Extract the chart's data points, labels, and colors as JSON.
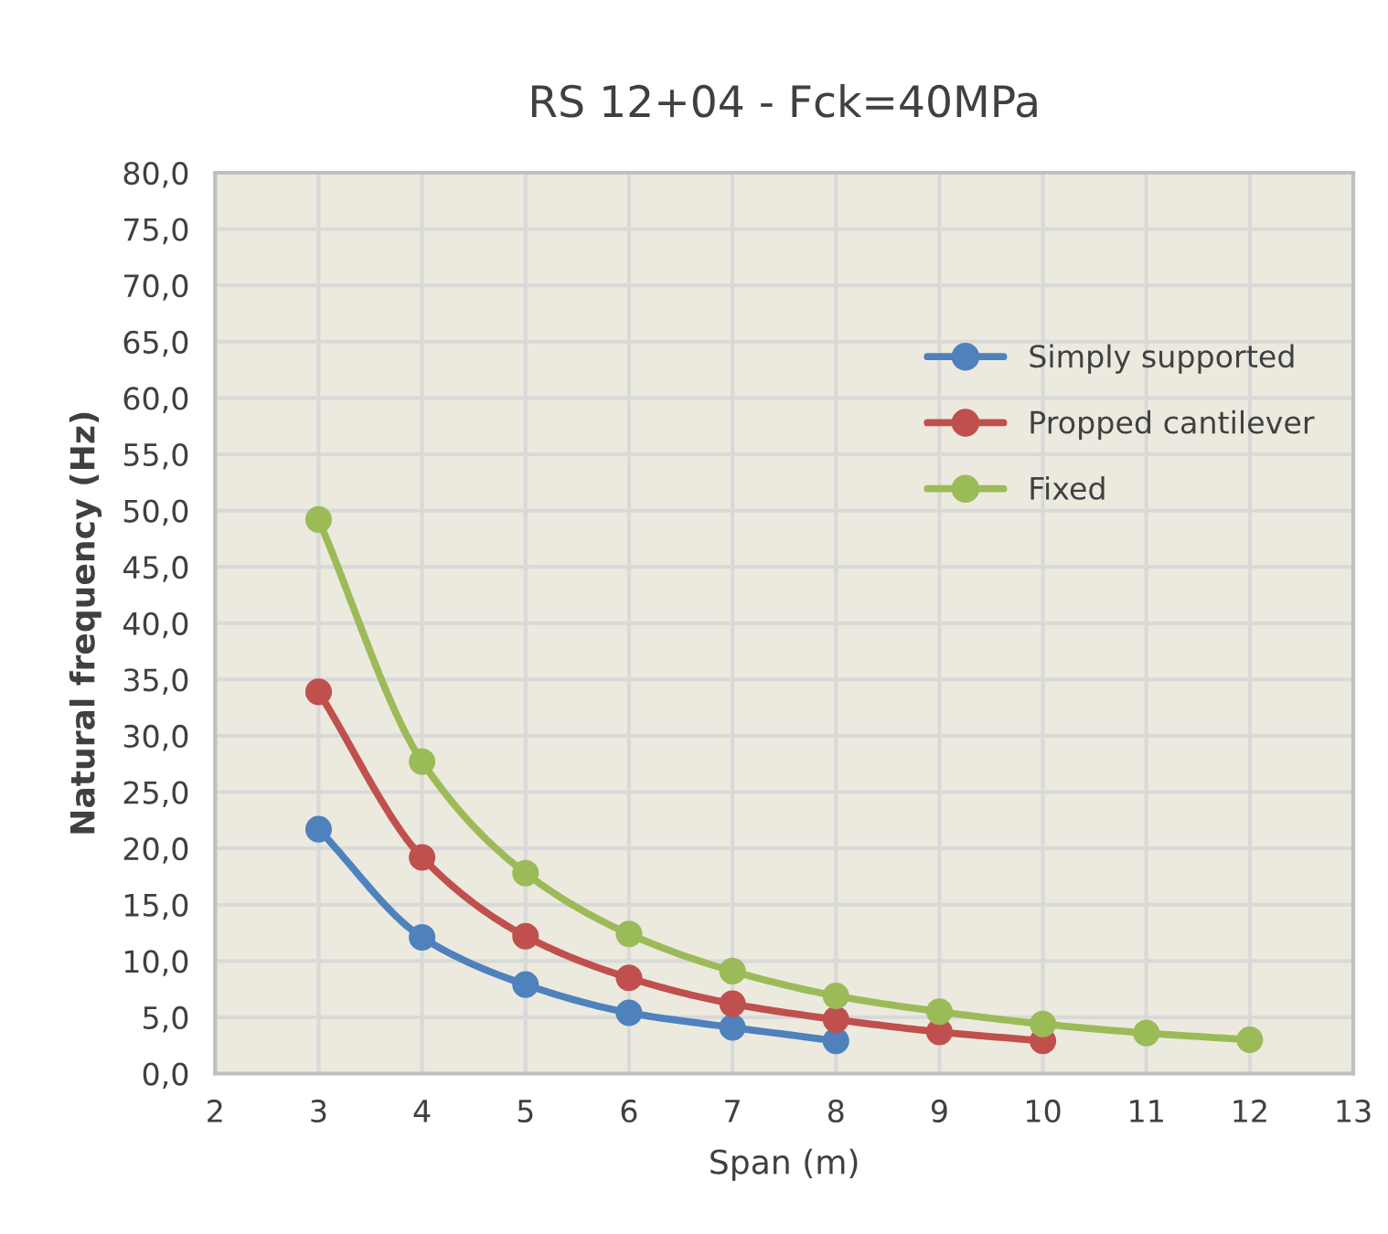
{
  "chart_data": {
    "type": "line",
    "title": "RS 12+04 - Fck=40MPa",
    "xlabel": "Span (m)",
    "ylabel": "Natural frequency (Hz)",
    "series": [
      {
        "name": "Simply supported",
        "color": "#4f81bd",
        "x": [
          3,
          4,
          5,
          6,
          7,
          8
        ],
        "values": [
          21.7,
          12.1,
          7.9,
          5.4,
          4.1,
          2.9
        ]
      },
      {
        "name": "Propped cantilever",
        "color": "#c0504d",
        "x": [
          3,
          4,
          5,
          6,
          7,
          8,
          9,
          10
        ],
        "values": [
          33.9,
          19.2,
          12.2,
          8.5,
          6.2,
          4.8,
          3.7,
          2.9
        ]
      },
      {
        "name": "Fixed",
        "color": "#9bbb59",
        "x": [
          3,
          4,
          5,
          6,
          7,
          8,
          9,
          10,
          11,
          12
        ],
        "values": [
          49.2,
          27.7,
          17.8,
          12.4,
          9.1,
          6.9,
          5.5,
          4.4,
          3.6,
          3.0
        ]
      }
    ],
    "xlim": [
      2,
      13
    ],
    "xticks": [
      2,
      3,
      4,
      5,
      6,
      7,
      8,
      9,
      10,
      11,
      12,
      13
    ],
    "ylim": [
      0,
      80
    ],
    "yticks": [
      {
        "value": 0,
        "label": "0,0"
      },
      {
        "value": 5,
        "label": "5,0"
      },
      {
        "value": 10,
        "label": "10,0"
      },
      {
        "value": 15,
        "label": "15,0"
      },
      {
        "value": 20,
        "label": "20,0"
      },
      {
        "value": 25,
        "label": "25,0"
      },
      {
        "value": 30,
        "label": "30,0"
      },
      {
        "value": 35,
        "label": "35,0"
      },
      {
        "value": 40,
        "label": "40,0"
      },
      {
        "value": 45,
        "label": "45,0"
      },
      {
        "value": 50,
        "label": "50,0"
      },
      {
        "value": 55,
        "label": "55,0"
      },
      {
        "value": 60,
        "label": "60,0"
      },
      {
        "value": 65,
        "label": "65,0"
      },
      {
        "value": 70,
        "label": "70,0"
      },
      {
        "value": 75,
        "label": "75,0"
      },
      {
        "value": 80,
        "label": "80,0"
      }
    ],
    "grid": true,
    "legend": "right",
    "marker": "circle",
    "line_style": "solid"
  }
}
